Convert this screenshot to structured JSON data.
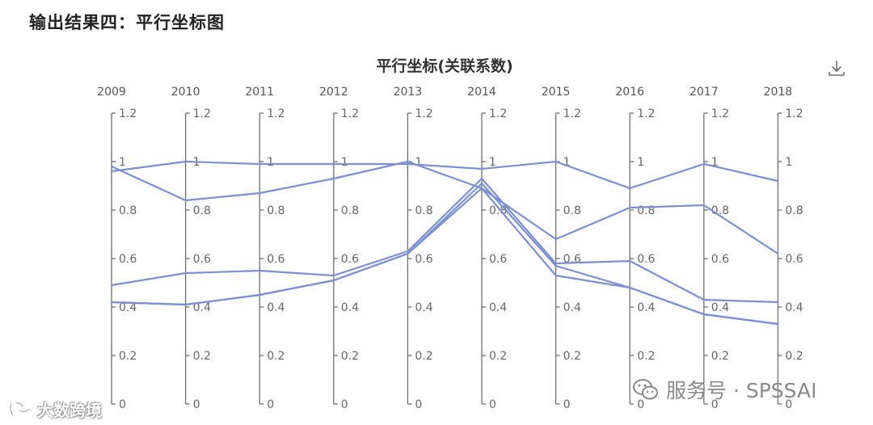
{
  "page": {
    "heading": "输出结果四：平行坐标图"
  },
  "toolbar": {
    "download_icon": "download-icon"
  },
  "watermarks": {
    "left_text": "大数跨境",
    "right_text": "服务号 · SPSSAI",
    "left_icon": "logo-icon",
    "right_icon": "wechat-icon"
  },
  "chart_data": {
    "type": "parallel",
    "title": "平行坐标(关联系数)",
    "axes": [
      "2009",
      "2010",
      "2011",
      "2012",
      "2013",
      "2014",
      "2015",
      "2016",
      "2017",
      "2018"
    ],
    "axis_range": [
      0,
      1.2
    ],
    "tick_values": [
      0,
      0.2,
      0.4,
      0.6,
      0.8,
      1,
      1.2
    ],
    "tick_labels": [
      "0",
      "0.2",
      "0.4",
      "0.6",
      "0.8",
      "1",
      "1.2"
    ],
    "line_color": "#7b8fd1",
    "axis_color": "#6e6e6e",
    "series": [
      {
        "values": [
          0.96,
          1.0,
          0.99,
          0.99,
          0.99,
          0.97,
          1.0,
          0.89,
          0.99,
          0.92
        ]
      },
      {
        "values": [
          0.98,
          0.84,
          0.87,
          0.93,
          1.0,
          0.89,
          0.68,
          0.81,
          0.82,
          0.62
        ]
      },
      {
        "values": [
          0.49,
          0.54,
          0.55,
          0.53,
          0.63,
          0.93,
          0.58,
          0.59,
          0.43,
          0.42
        ]
      },
      {
        "values": [
          0.42,
          0.41,
          0.45,
          0.51,
          0.62,
          0.91,
          0.57,
          0.48,
          0.37,
          0.33
        ]
      },
      {
        "values": [
          0.42,
          0.41,
          0.45,
          0.51,
          0.62,
          0.89,
          0.53,
          0.48,
          0.37,
          0.33
        ]
      }
    ]
  }
}
